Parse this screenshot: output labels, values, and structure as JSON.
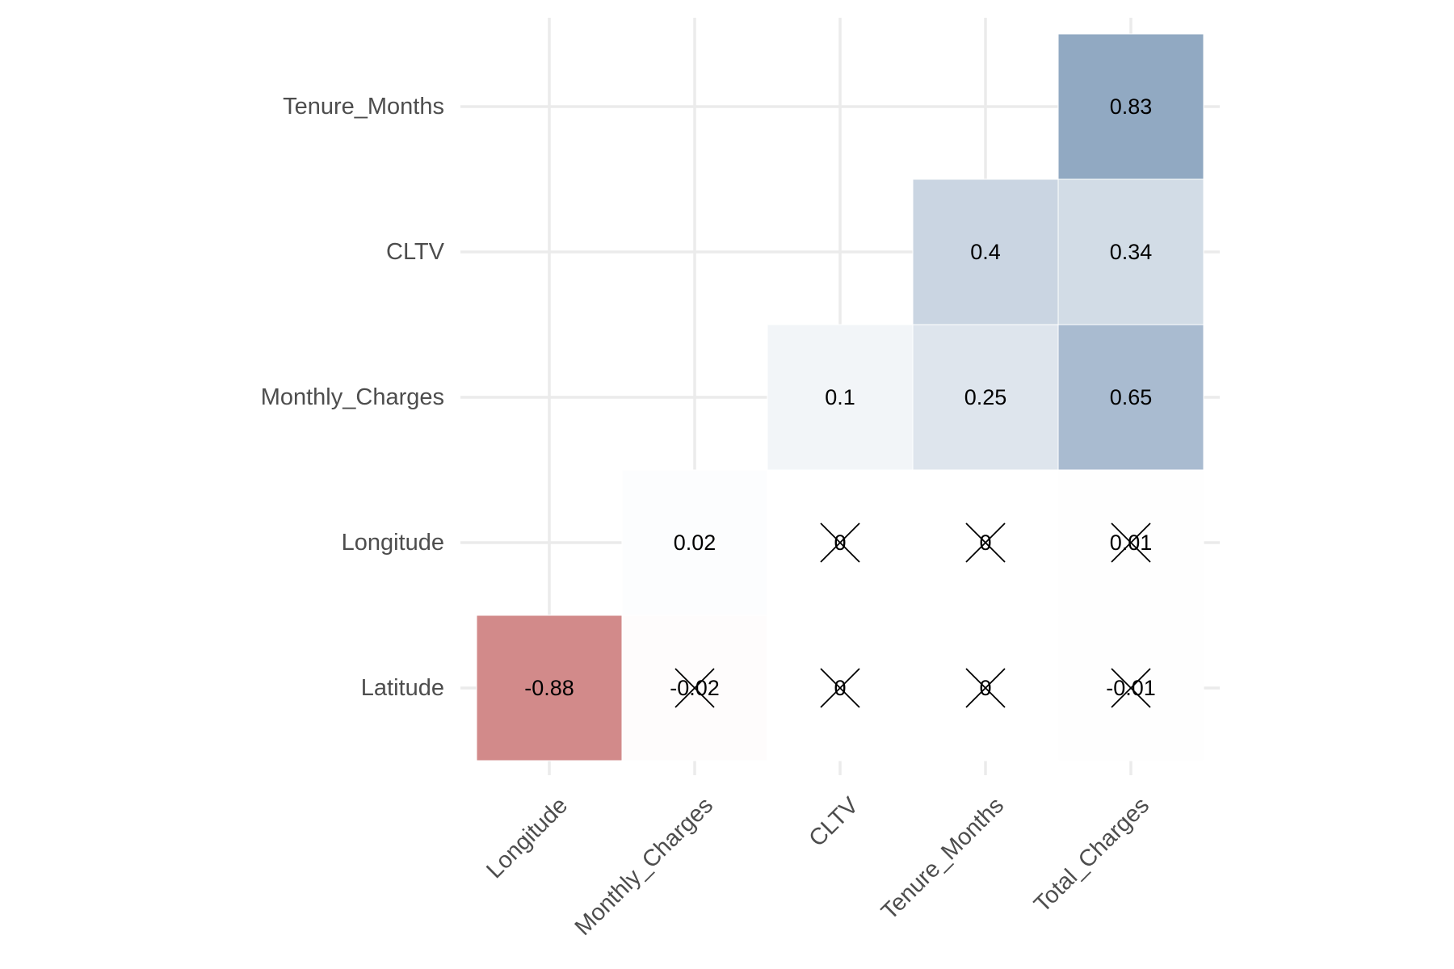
{
  "chart_data": {
    "type": "heatmap",
    "title": "",
    "xlabel": "",
    "ylabel": "",
    "x_categories": [
      "Longitude",
      "Monthly_Charges",
      "CLTV",
      "Tenure_Months",
      "Total_Charges"
    ],
    "y_categories": [
      "Latitude",
      "Longitude",
      "Monthly_Charges",
      "CLTV",
      "Tenure_Months"
    ],
    "layout": "lower-triangle correlation matrix",
    "color_scale": {
      "low": "#CC7A7A",
      "mid": "#FFFFFF",
      "high": "#7B97B6",
      "domain": [
        -1,
        0,
        1
      ]
    },
    "grid": true,
    "legend": "none",
    "cells": [
      {
        "x": "Longitude",
        "y": "Latitude",
        "value": -0.88,
        "label": "-0.88",
        "crossed": false
      },
      {
        "x": "Monthly_Charges",
        "y": "Latitude",
        "value": -0.02,
        "label": "-0.02",
        "crossed": true
      },
      {
        "x": "CLTV",
        "y": "Latitude",
        "value": 0,
        "label": "0",
        "crossed": true
      },
      {
        "x": "Tenure_Months",
        "y": "Latitude",
        "value": 0,
        "label": "0",
        "crossed": true
      },
      {
        "x": "Total_Charges",
        "y": "Latitude",
        "value": -0.01,
        "label": "-0.01",
        "crossed": true
      },
      {
        "x": "Monthly_Charges",
        "y": "Longitude",
        "value": 0.02,
        "label": "0.02",
        "crossed": false
      },
      {
        "x": "CLTV",
        "y": "Longitude",
        "value": 0,
        "label": "0",
        "crossed": true
      },
      {
        "x": "Tenure_Months",
        "y": "Longitude",
        "value": 0,
        "label": "0",
        "crossed": true
      },
      {
        "x": "Total_Charges",
        "y": "Longitude",
        "value": 0.01,
        "label": "0.01",
        "crossed": true
      },
      {
        "x": "CLTV",
        "y": "Monthly_Charges",
        "value": 0.1,
        "label": "0.1",
        "crossed": false
      },
      {
        "x": "Tenure_Months",
        "y": "Monthly_Charges",
        "value": 0.25,
        "label": "0.25",
        "crossed": false
      },
      {
        "x": "Total_Charges",
        "y": "Monthly_Charges",
        "value": 0.65,
        "label": "0.65",
        "crossed": false
      },
      {
        "x": "Tenure_Months",
        "y": "CLTV",
        "value": 0.4,
        "label": "0.4",
        "crossed": false
      },
      {
        "x": "Total_Charges",
        "y": "CLTV",
        "value": 0.34,
        "label": "0.34",
        "crossed": false
      },
      {
        "x": "Total_Charges",
        "y": "Tenure_Months",
        "value": 0.83,
        "label": "0.83",
        "crossed": false
      }
    ]
  }
}
